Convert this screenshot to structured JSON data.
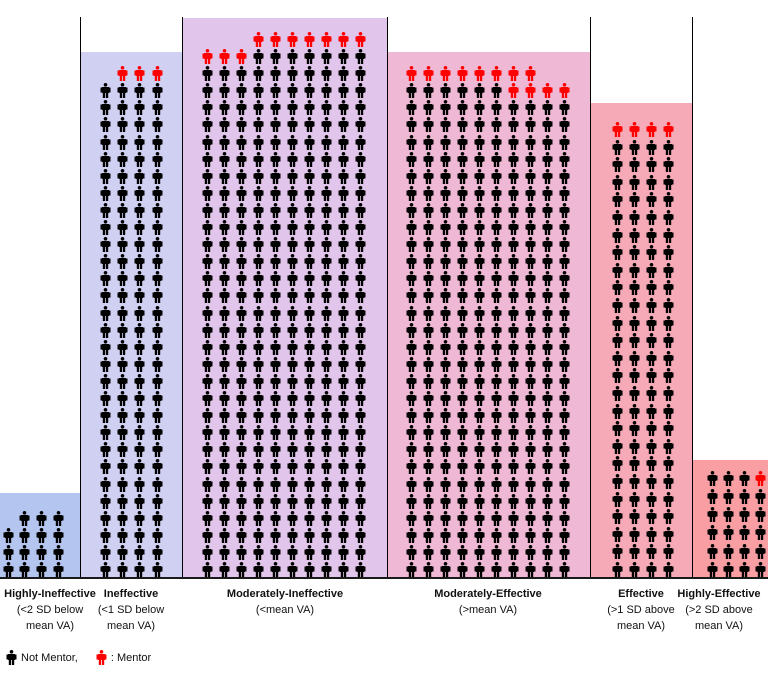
{
  "chart_data": {
    "type": "pictogram",
    "title": "",
    "legend": {
      "not_mentor": "Not Mentor,",
      "mentor": ": Mentor",
      "placement": "bottom-left"
    },
    "colors": {
      "not_mentor": "#000000",
      "mentor": "#ff0000"
    },
    "categories": [
      {
        "title": "Highly-Ineffective",
        "sub1": "(<2 SD below",
        "sub2": "mean VA)",
        "bg": "#b4c6ef",
        "columns": [
          {
            "n": 3,
            "mentor": 0
          },
          {
            "n": 4,
            "mentor": 0
          },
          {
            "n": 4,
            "mentor": 0
          },
          {
            "n": 4,
            "mentor": 0
          }
        ]
      },
      {
        "title": "Ineffective",
        "sub1": "(<1 SD below",
        "sub2": "mean VA)",
        "bg": "#cfd0f2",
        "columns": [
          {
            "n": 29,
            "mentor": 0
          },
          {
            "n": 30,
            "mentor": 1
          },
          {
            "n": 30,
            "mentor": 1
          },
          {
            "n": 30,
            "mentor": 1
          }
        ]
      },
      {
        "title": "Moderately-Ineffective",
        "sub1": "(<mean VA)",
        "sub2": "",
        "bg": "#e2c5ea",
        "columns": [
          {
            "n": 31,
            "mentor": 1
          },
          {
            "n": 31,
            "mentor": 1
          },
          {
            "n": 31,
            "mentor": 1
          },
          {
            "n": 32,
            "mentor": 1
          },
          {
            "n": 32,
            "mentor": 1
          },
          {
            "n": 32,
            "mentor": 1
          },
          {
            "n": 32,
            "mentor": 1
          },
          {
            "n": 32,
            "mentor": 1
          },
          {
            "n": 32,
            "mentor": 1
          },
          {
            "n": 32,
            "mentor": 1
          }
        ]
      },
      {
        "title": "Moderately-Effective",
        "sub1": "(>mean VA)",
        "sub2": "",
        "bg": "#efb8d5",
        "columns": [
          {
            "n": 30,
            "mentor": 1
          },
          {
            "n": 30,
            "mentor": 1
          },
          {
            "n": 30,
            "mentor": 1
          },
          {
            "n": 30,
            "mentor": 1
          },
          {
            "n": 30,
            "mentor": 1
          },
          {
            "n": 30,
            "mentor": 1
          },
          {
            "n": 30,
            "mentor": 2
          },
          {
            "n": 30,
            "mentor": 2
          },
          {
            "n": 29,
            "mentor": 1
          },
          {
            "n": 29,
            "mentor": 1
          }
        ]
      },
      {
        "title": "Effective",
        "sub1": "(>1 SD above",
        "sub2": "mean VA)",
        "bg": "#f6aab7",
        "columns": [
          {
            "n": 26,
            "mentor": 1
          },
          {
            "n": 26,
            "mentor": 1
          },
          {
            "n": 26,
            "mentor": 1
          },
          {
            "n": 26,
            "mentor": 1
          }
        ]
      },
      {
        "title": "Highly-Effective",
        "sub1": "(>2 SD above",
        "sub2": "mean VA)",
        "bg": "#f99fa4",
        "columns": [
          {
            "n": 6,
            "mentor": 0
          },
          {
            "n": 6,
            "mentor": 0
          },
          {
            "n": 6,
            "mentor": 0
          },
          {
            "n": 6,
            "mentor": 1
          }
        ]
      }
    ]
  }
}
